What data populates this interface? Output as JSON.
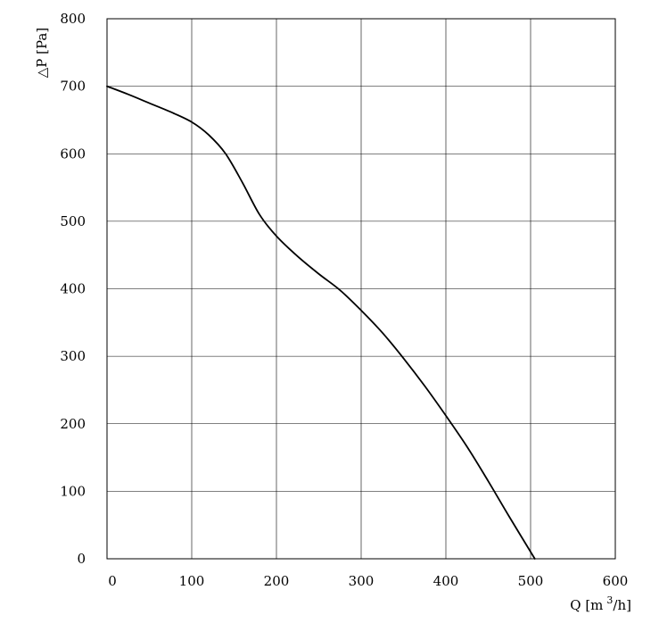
{
  "chart_data": {
    "type": "line",
    "title": "",
    "xlabel_parts": [
      "Q [m",
      "3",
      "/h]"
    ],
    "ylabel": "△P [Pa]",
    "xlim": [
      0,
      600
    ],
    "ylim": [
      0,
      800
    ],
    "x_ticks": [
      "0",
      "100",
      "200",
      "300",
      "400",
      "500",
      "600"
    ],
    "y_ticks": [
      "0",
      "100",
      "200",
      "300",
      "400",
      "500",
      "600",
      "700",
      "800"
    ],
    "grid": true,
    "legend": "none",
    "series": [
      {
        "x": [
          0,
          25,
          50,
          75,
          100,
          120,
          140,
          160,
          180,
          200,
          225,
          250,
          275,
          300,
          325,
          350,
          375,
          400,
          425,
          450,
          475,
          505
        ],
        "y": [
          700,
          688,
          675,
          662,
          647,
          628,
          600,
          557,
          510,
          478,
          448,
          422,
          398,
          368,
          335,
          297,
          256,
          212,
          166,
          115,
          62,
          0
        ]
      }
    ]
  }
}
